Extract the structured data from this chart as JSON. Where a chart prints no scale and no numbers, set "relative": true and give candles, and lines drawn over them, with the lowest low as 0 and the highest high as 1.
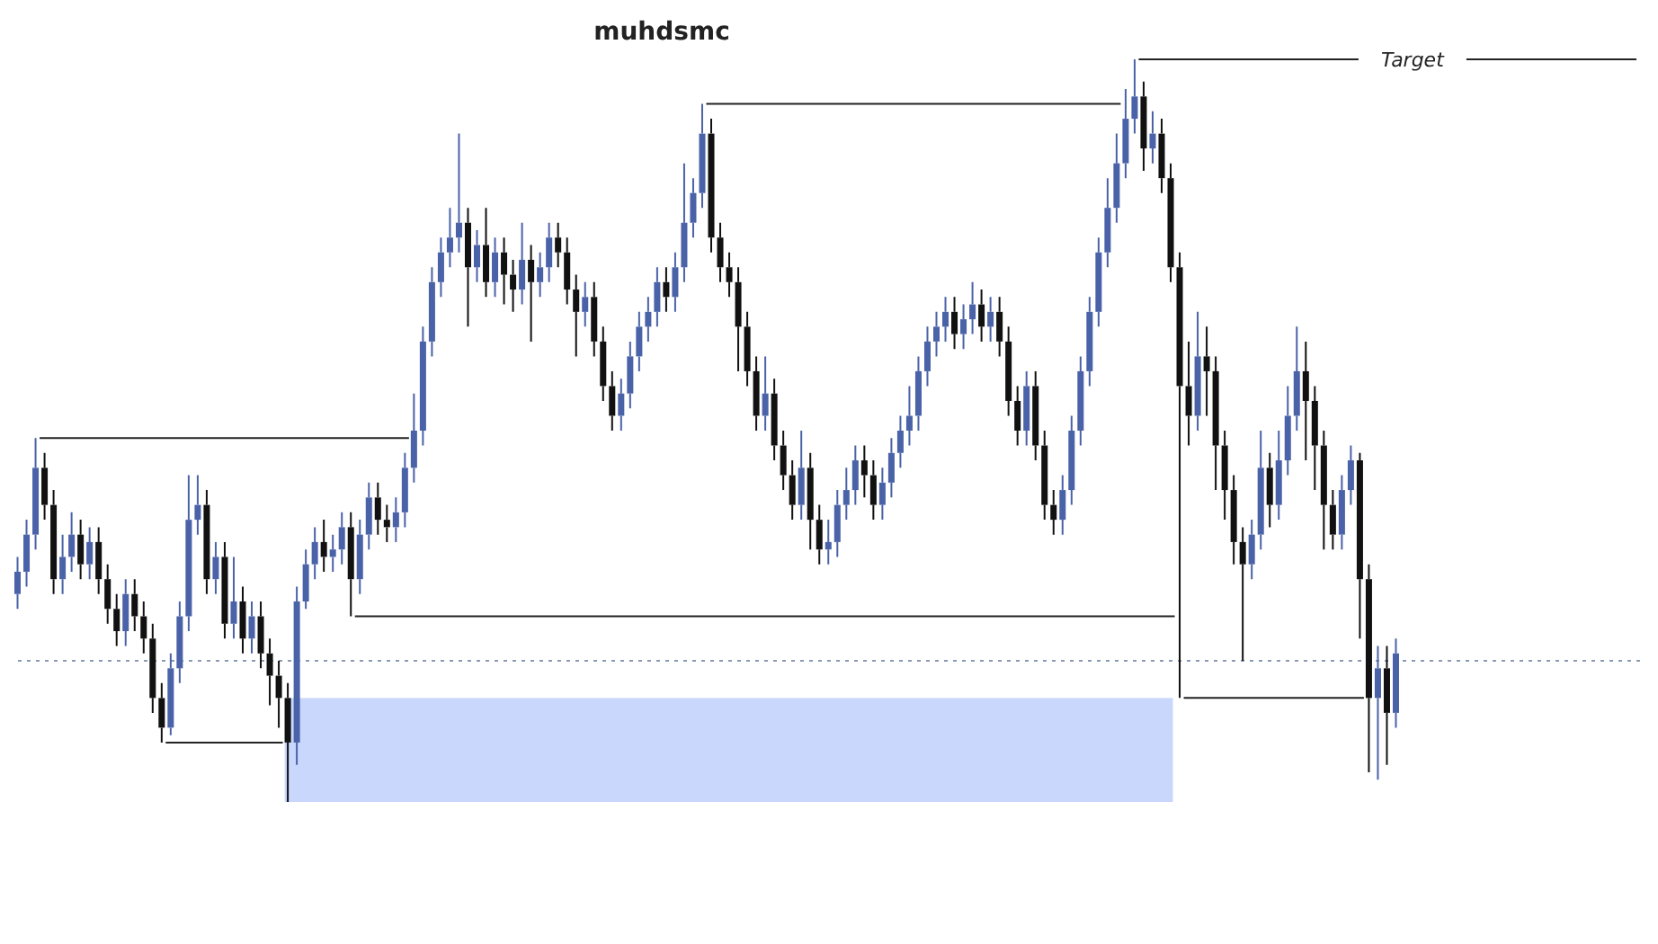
{
  "chart_data": {
    "type": "candlestick",
    "title": "muhdsmc",
    "relative": true,
    "categories": [
      null,
      null,
      null,
      null,
      null,
      null,
      null,
      null,
      null,
      null,
      null,
      null,
      null,
      null,
      null,
      null,
      null,
      null,
      null,
      null,
      null,
      null,
      null,
      null,
      null,
      null,
      null,
      null,
      null,
      null,
      null,
      null,
      null,
      null,
      null,
      null,
      null,
      null,
      null,
      null,
      null,
      null,
      null,
      null,
      null,
      null,
      null,
      null,
      null,
      null,
      null,
      null,
      null,
      null,
      null,
      null,
      null,
      null,
      null,
      null,
      null,
      null,
      null,
      null,
      null,
      null,
      null,
      null,
      null,
      null,
      null,
      null,
      null,
      null,
      null,
      null,
      null,
      null,
      null,
      null,
      null,
      null,
      null,
      null,
      null,
      null,
      null,
      null,
      null,
      null,
      null,
      null,
      null,
      null,
      null,
      null,
      null,
      null,
      null,
      null,
      null,
      null,
      null,
      null,
      null,
      null,
      null,
      null,
      null,
      null,
      null,
      null,
      null,
      null,
      null,
      null,
      null,
      null,
      null,
      null,
      null,
      null,
      null,
      null,
      null,
      null,
      null,
      null,
      null,
      null,
      null,
      null,
      null,
      null,
      null,
      null,
      null,
      null,
      null,
      null,
      null,
      null,
      null,
      null,
      null,
      null,
      null,
      null,
      null,
      null,
      null,
      null,
      null,
      null
    ],
    "ohlc": [
      [
        0.28,
        0.33,
        0.26,
        0.31
      ],
      [
        0.31,
        0.38,
        0.29,
        0.36
      ],
      [
        0.36,
        0.49,
        0.34,
        0.45
      ],
      [
        0.45,
        0.47,
        0.38,
        0.4
      ],
      [
        0.4,
        0.42,
        0.28,
        0.3
      ],
      [
        0.3,
        0.36,
        0.28,
        0.33
      ],
      [
        0.33,
        0.39,
        0.31,
        0.36
      ],
      [
        0.36,
        0.38,
        0.3,
        0.32
      ],
      [
        0.32,
        0.37,
        0.3,
        0.35
      ],
      [
        0.35,
        0.37,
        0.28,
        0.3
      ],
      [
        0.3,
        0.32,
        0.24,
        0.26
      ],
      [
        0.26,
        0.28,
        0.21,
        0.23
      ],
      [
        0.23,
        0.3,
        0.21,
        0.28
      ],
      [
        0.28,
        0.3,
        0.23,
        0.25
      ],
      [
        0.25,
        0.27,
        0.2,
        0.22
      ],
      [
        0.22,
        0.24,
        0.12,
        0.14
      ],
      [
        0.14,
        0.16,
        0.08,
        0.1
      ],
      [
        0.1,
        0.2,
        0.09,
        0.18
      ],
      [
        0.18,
        0.27,
        0.16,
        0.25
      ],
      [
        0.25,
        0.44,
        0.23,
        0.38
      ],
      [
        0.38,
        0.44,
        0.36,
        0.4
      ],
      [
        0.4,
        0.42,
        0.28,
        0.3
      ],
      [
        0.3,
        0.35,
        0.28,
        0.33
      ],
      [
        0.33,
        0.35,
        0.22,
        0.24
      ],
      [
        0.24,
        0.33,
        0.22,
        0.27
      ],
      [
        0.27,
        0.29,
        0.2,
        0.22
      ],
      [
        0.22,
        0.27,
        0.2,
        0.25
      ],
      [
        0.25,
        0.27,
        0.18,
        0.2
      ],
      [
        0.2,
        0.22,
        0.13,
        0.17
      ],
      [
        0.17,
        0.19,
        0.1,
        0.14
      ],
      [
        0.14,
        0.16,
        0.0,
        0.08
      ],
      [
        0.08,
        0.29,
        0.05,
        0.27
      ],
      [
        0.27,
        0.34,
        0.26,
        0.32
      ],
      [
        0.32,
        0.37,
        0.3,
        0.35
      ],
      [
        0.35,
        0.38,
        0.31,
        0.33
      ],
      [
        0.33,
        0.36,
        0.31,
        0.34
      ],
      [
        0.34,
        0.39,
        0.32,
        0.37
      ],
      [
        0.37,
        0.39,
        0.25,
        0.3
      ],
      [
        0.3,
        0.38,
        0.28,
        0.36
      ],
      [
        0.36,
        0.43,
        0.34,
        0.41
      ],
      [
        0.41,
        0.43,
        0.36,
        0.38
      ],
      [
        0.38,
        0.4,
        0.35,
        0.37
      ],
      [
        0.37,
        0.41,
        0.35,
        0.39
      ],
      [
        0.39,
        0.47,
        0.37,
        0.45
      ],
      [
        0.45,
        0.55,
        0.43,
        0.5
      ],
      [
        0.5,
        0.64,
        0.48,
        0.62
      ],
      [
        0.62,
        0.72,
        0.6,
        0.7
      ],
      [
        0.7,
        0.76,
        0.68,
        0.74
      ],
      [
        0.74,
        0.8,
        0.72,
        0.76
      ],
      [
        0.76,
        0.9,
        0.74,
        0.78
      ],
      [
        0.78,
        0.8,
        0.64,
        0.72
      ],
      [
        0.72,
        0.77,
        0.7,
        0.75
      ],
      [
        0.75,
        0.8,
        0.68,
        0.7
      ],
      [
        0.7,
        0.76,
        0.68,
        0.74
      ],
      [
        0.74,
        0.76,
        0.67,
        0.71
      ],
      [
        0.71,
        0.73,
        0.66,
        0.69
      ],
      [
        0.69,
        0.78,
        0.67,
        0.73
      ],
      [
        0.73,
        0.75,
        0.62,
        0.7
      ],
      [
        0.7,
        0.74,
        0.68,
        0.72
      ],
      [
        0.72,
        0.78,
        0.7,
        0.76
      ],
      [
        0.76,
        0.78,
        0.72,
        0.74
      ],
      [
        0.74,
        0.76,
        0.67,
        0.69
      ],
      [
        0.69,
        0.71,
        0.6,
        0.66
      ],
      [
        0.66,
        0.7,
        0.64,
        0.68
      ],
      [
        0.68,
        0.7,
        0.6,
        0.62
      ],
      [
        0.62,
        0.64,
        0.54,
        0.56
      ],
      [
        0.56,
        0.58,
        0.5,
        0.52
      ],
      [
        0.52,
        0.57,
        0.5,
        0.55
      ],
      [
        0.55,
        0.62,
        0.53,
        0.6
      ],
      [
        0.6,
        0.66,
        0.58,
        0.64
      ],
      [
        0.64,
        0.68,
        0.62,
        0.66
      ],
      [
        0.66,
        0.72,
        0.64,
        0.7
      ],
      [
        0.7,
        0.72,
        0.66,
        0.68
      ],
      [
        0.68,
        0.74,
        0.66,
        0.72
      ],
      [
        0.72,
        0.86,
        0.7,
        0.78
      ],
      [
        0.78,
        0.84,
        0.76,
        0.82
      ],
      [
        0.82,
        0.94,
        0.8,
        0.9
      ],
      [
        0.9,
        0.92,
        0.74,
        0.76
      ],
      [
        0.76,
        0.78,
        0.7,
        0.72
      ],
      [
        0.72,
        0.74,
        0.68,
        0.7
      ],
      [
        0.7,
        0.72,
        0.58,
        0.64
      ],
      [
        0.64,
        0.66,
        0.56,
        0.58
      ],
      [
        0.58,
        0.6,
        0.5,
        0.52
      ],
      [
        0.52,
        0.6,
        0.5,
        0.55
      ],
      [
        0.55,
        0.57,
        0.46,
        0.48
      ],
      [
        0.48,
        0.5,
        0.42,
        0.44
      ],
      [
        0.44,
        0.46,
        0.38,
        0.4
      ],
      [
        0.4,
        0.5,
        0.38,
        0.45
      ],
      [
        0.45,
        0.47,
        0.34,
        0.38
      ],
      [
        0.38,
        0.4,
        0.32,
        0.34
      ],
      [
        0.34,
        0.38,
        0.32,
        0.35
      ],
      [
        0.35,
        0.42,
        0.33,
        0.4
      ],
      [
        0.4,
        0.45,
        0.38,
        0.42
      ],
      [
        0.42,
        0.48,
        0.4,
        0.46
      ],
      [
        0.46,
        0.48,
        0.41,
        0.44
      ],
      [
        0.44,
        0.46,
        0.38,
        0.4
      ],
      [
        0.4,
        0.45,
        0.38,
        0.43
      ],
      [
        0.43,
        0.49,
        0.41,
        0.47
      ],
      [
        0.47,
        0.52,
        0.45,
        0.5
      ],
      [
        0.5,
        0.56,
        0.48,
        0.52
      ],
      [
        0.52,
        0.6,
        0.5,
        0.58
      ],
      [
        0.58,
        0.64,
        0.56,
        0.62
      ],
      [
        0.62,
        0.66,
        0.6,
        0.64
      ],
      [
        0.64,
        0.68,
        0.62,
        0.66
      ],
      [
        0.66,
        0.68,
        0.61,
        0.63
      ],
      [
        0.63,
        0.67,
        0.61,
        0.65
      ],
      [
        0.65,
        0.7,
        0.63,
        0.67
      ],
      [
        0.67,
        0.69,
        0.62,
        0.64
      ],
      [
        0.64,
        0.68,
        0.62,
        0.66
      ],
      [
        0.66,
        0.68,
        0.6,
        0.62
      ],
      [
        0.62,
        0.64,
        0.52,
        0.54
      ],
      [
        0.54,
        0.56,
        0.48,
        0.5
      ],
      [
        0.5,
        0.58,
        0.48,
        0.56
      ],
      [
        0.56,
        0.58,
        0.46,
        0.48
      ],
      [
        0.48,
        0.5,
        0.38,
        0.4
      ],
      [
        0.4,
        0.42,
        0.36,
        0.38
      ],
      [
        0.38,
        0.44,
        0.36,
        0.42
      ],
      [
        0.42,
        0.52,
        0.4,
        0.5
      ],
      [
        0.5,
        0.6,
        0.48,
        0.58
      ],
      [
        0.58,
        0.68,
        0.56,
        0.66
      ],
      [
        0.66,
        0.76,
        0.64,
        0.74
      ],
      [
        0.74,
        0.84,
        0.72,
        0.8
      ],
      [
        0.8,
        0.9,
        0.78,
        0.86
      ],
      [
        0.86,
        0.96,
        0.84,
        0.92
      ],
      [
        0.92,
        1.0,
        0.9,
        0.95
      ],
      [
        0.95,
        0.97,
        0.85,
        0.88
      ],
      [
        0.88,
        0.93,
        0.86,
        0.9
      ],
      [
        0.9,
        0.92,
        0.82,
        0.84
      ],
      [
        0.84,
        0.86,
        0.7,
        0.72
      ],
      [
        0.72,
        0.74,
        0.14,
        0.56
      ],
      [
        0.56,
        0.62,
        0.48,
        0.52
      ],
      [
        0.52,
        0.66,
        0.5,
        0.6
      ],
      [
        0.6,
        0.64,
        0.52,
        0.58
      ],
      [
        0.58,
        0.6,
        0.42,
        0.48
      ],
      [
        0.48,
        0.5,
        0.38,
        0.42
      ],
      [
        0.42,
        0.44,
        0.32,
        0.35
      ],
      [
        0.35,
        0.37,
        0.19,
        0.32
      ],
      [
        0.32,
        0.38,
        0.3,
        0.36
      ],
      [
        0.36,
        0.5,
        0.34,
        0.45
      ],
      [
        0.45,
        0.47,
        0.37,
        0.4
      ],
      [
        0.4,
        0.5,
        0.38,
        0.46
      ],
      [
        0.46,
        0.56,
        0.44,
        0.52
      ],
      [
        0.52,
        0.64,
        0.5,
        0.58
      ],
      [
        0.58,
        0.62,
        0.46,
        0.54
      ],
      [
        0.54,
        0.56,
        0.42,
        0.48
      ],
      [
        0.48,
        0.5,
        0.34,
        0.4
      ],
      [
        0.4,
        0.42,
        0.34,
        0.36
      ],
      [
        0.36,
        0.44,
        0.34,
        0.42
      ],
      [
        0.42,
        0.48,
        0.4,
        0.46
      ],
      [
        0.46,
        0.47,
        0.22,
        0.3
      ],
      [
        0.3,
        0.32,
        0.04,
        0.14
      ],
      [
        0.14,
        0.21,
        0.03,
        0.18
      ],
      [
        0.18,
        0.21,
        0.05,
        0.12
      ],
      [
        0.12,
        0.22,
        0.1,
        0.2
      ]
    ],
    "ref_lines": [
      {
        "axis": "y",
        "value": 0.49,
        "color": "#222222",
        "line_style": "solid"
      },
      {
        "axis": "y",
        "value": 0.08,
        "color": "#222222",
        "line_style": "solid"
      },
      {
        "axis": "y",
        "value": 0.25,
        "color": "#222222",
        "line_style": "solid"
      },
      {
        "axis": "y",
        "value": 0.94,
        "color": "#222222",
        "line_style": "solid"
      },
      {
        "axis": "y",
        "value": 1.0,
        "label": "Target",
        "color": "#222222",
        "line_style": "solid"
      },
      {
        "axis": "y",
        "value": 0.14,
        "color": "#222222",
        "line_style": "solid"
      },
      {
        "axis": "y",
        "value": 0.19,
        "color": "#8a9ab4",
        "line_style": "dotted"
      }
    ],
    "bands": [
      {
        "axis": "y",
        "from": 0,
        "to": 0.14,
        "color": "#c8d7fb"
      }
    ]
  }
}
